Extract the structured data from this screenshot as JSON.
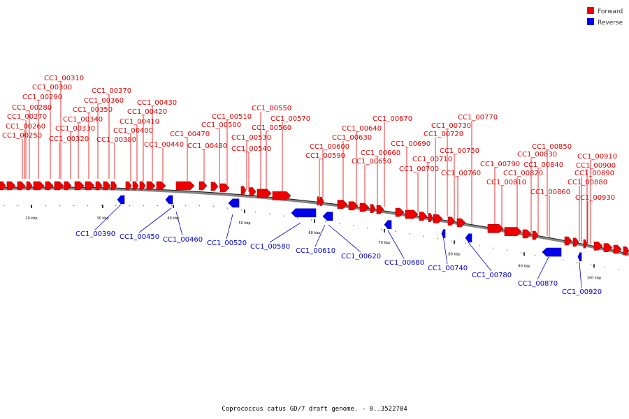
{
  "legend": [
    {
      "label": "Forward",
      "color": "#ee0000"
    },
    {
      "label": "Reverse",
      "color": "#0000ee"
    }
  ],
  "caption": "Coprococcus catus GD/7 draft genome. - 0..3522704",
  "ticks": [
    "20 kbp",
    "30 kbp",
    "40 kbp",
    "50 kbp",
    "60 kbp",
    "70 kbp",
    "80 kbp",
    "90 kbp",
    "100 kbp"
  ],
  "forward_labels": [
    "CC1_00250",
    "CC1_00260",
    "CC1_00270",
    "CC1_00280",
    "CC1_00290",
    "CC1_00300",
    "CC1_00310",
    "CC1_00320",
    "CC1_00330",
    "CC1_00340",
    "CC1_00350",
    "CC1_00360",
    "CC1_00370",
    "CC1_00380",
    "CC1_00400",
    "CC1_00410",
    "CC1_00420",
    "CC1_00430",
    "CC1_00440",
    "CC1_00470",
    "CC1_00480",
    "CC1_00500",
    "CC1_00510",
    "CC1_00530",
    "CC1_00540",
    "CC1_00550",
    "CC1_00560",
    "CC1_00570",
    "CC1_00590",
    "CC1_00600",
    "CC1_00630",
    "CC1_00640",
    "CC1_00650",
    "CC1_00660",
    "CC1_00670",
    "CC1_00690",
    "CC1_00700",
    "CC1_00710",
    "CC1_00720",
    "CC1_00730",
    "CC1_00750",
    "CC1_00760",
    "CC1_00770",
    "CC1_00790",
    "CC1_00810",
    "CC1_00820",
    "CC1_00830",
    "CC1_00840",
    "CC1_00850",
    "CC1_00860",
    "CC1_00880",
    "CC1_00890",
    "CC1_00900",
    "CC1_00910",
    "CC1_00930"
  ],
  "reverse_labels": [
    "CC1_00390",
    "CC1_00450",
    "CC1_00460",
    "CC1_00520",
    "CC1_00580",
    "CC1_00610",
    "CC1_00620",
    "CC1_00680",
    "CC1_00740",
    "CC1_00780",
    "CC1_00870",
    "CC1_00920"
  ]
}
